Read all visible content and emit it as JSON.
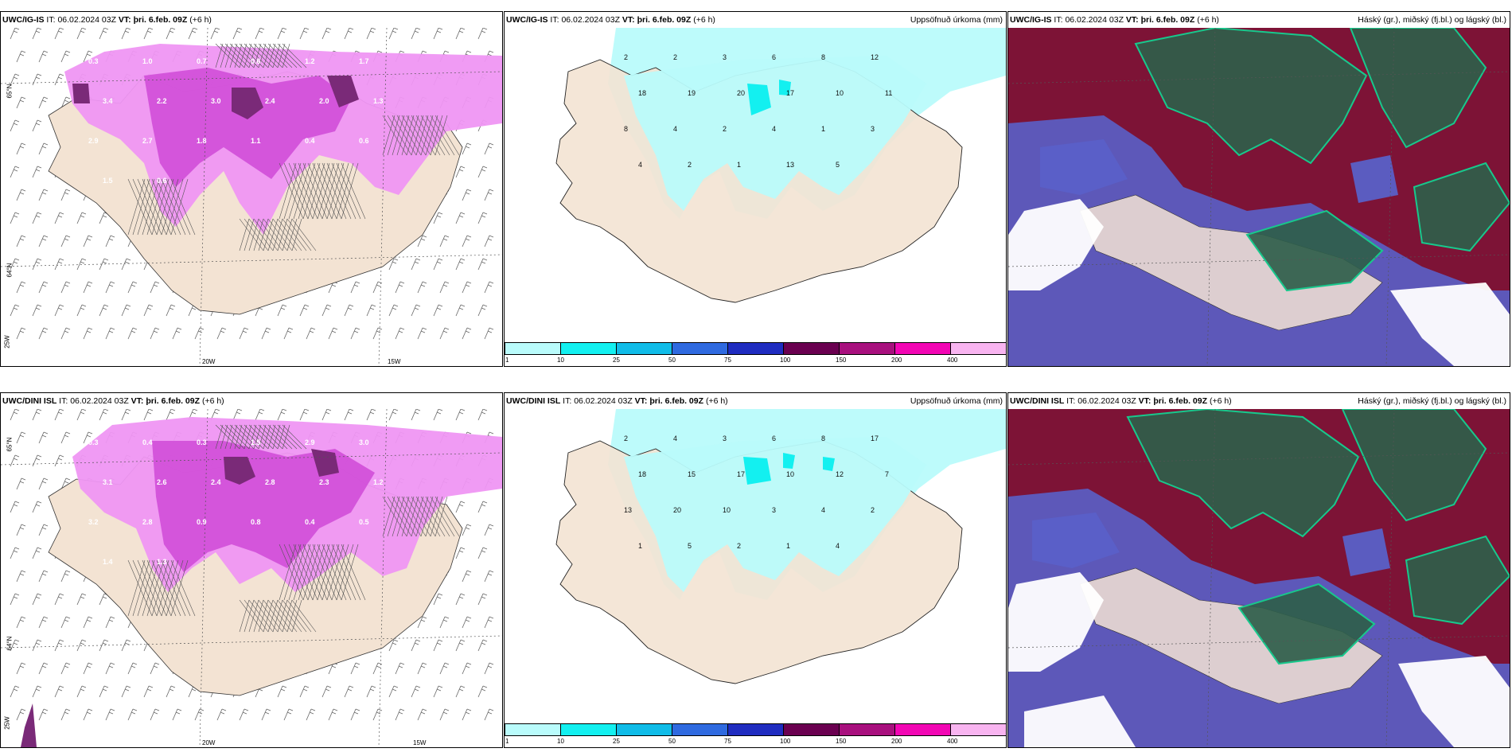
{
  "common": {
    "it_label": "IT:",
    "it_value": "06.02.2024 03Z",
    "vt_label": "VT:",
    "vt_value": "þri. 6.feb. 09Z",
    "lead": "(+6 h)"
  },
  "rows": [
    {
      "model": "UWC/IG-IS"
    },
    {
      "model": "UWC/DINI ISL"
    }
  ],
  "titles": {
    "precip": "Uppsöfnuð úrkoma (mm)",
    "cloud": "Háský (gr.), miðský (fj.bl.) og lágský (bl.)"
  },
  "axes": {
    "lat_65": "65°N",
    "lat_64": "64°N",
    "lon_20": "20W",
    "lon_15": "15W",
    "lon_25": "25W"
  },
  "precip_colorbar": {
    "ticks": [
      "1",
      "10",
      "25",
      "50",
      "75",
      "100",
      "150",
      "200",
      "400"
    ],
    "colors": [
      "#b9fbfb",
      "#13f0f0",
      "#10bce8",
      "#2f6ae0",
      "#1f2cc0",
      "#6a0050",
      "#a8107e",
      "#f206b4",
      "#f8b4f0"
    ]
  },
  "colors": {
    "land": "#f3e3d3",
    "snow_light": "#ef96f3",
    "snow_mid": "#d04ed8",
    "snow_dark": "#7a2a78",
    "precip_light": "#b9fbfb",
    "cloud_high": "#2f5e4a",
    "cloud_mid": "#7d1336",
    "cloud_low": "#5a60c8"
  },
  "map_labels": {
    "snow_top": [
      "0.3",
      "1.0",
      "0.7",
      "0.6",
      "1.2",
      "1.7",
      "3.4",
      "2.2",
      "3.0",
      "2.4",
      "2.0",
      "1.3",
      "2.9",
      "2.7",
      "1.8",
      "1.1",
      "0.4",
      "0.6",
      "1.5",
      "0.6"
    ],
    "snow_bottom": [
      "0.3",
      "0.4",
      "0.3",
      "1.5",
      "2.9",
      "3.0",
      "3.1",
      "2.6",
      "2.4",
      "2.8",
      "2.3",
      "1.2",
      "3.2",
      "2.8",
      "0.9",
      "0.8",
      "0.4",
      "0.5",
      "1.4",
      "1.3"
    ],
    "precip_top": [
      "2",
      "2",
      "3",
      "6",
      "8",
      "12",
      "18",
      "19",
      "20",
      "17",
      "10",
      "11",
      "8",
      "4",
      "2",
      "4",
      "1",
      "3",
      "4",
      "2",
      "1",
      "13",
      "5"
    ],
    "precip_bottom": [
      "2",
      "4",
      "3",
      "6",
      "8",
      "17",
      "18",
      "15",
      "17",
      "10",
      "12",
      "7",
      "13",
      "20",
      "10",
      "3",
      "4",
      "2",
      "1",
      "5",
      "2",
      "1",
      "4"
    ]
  }
}
